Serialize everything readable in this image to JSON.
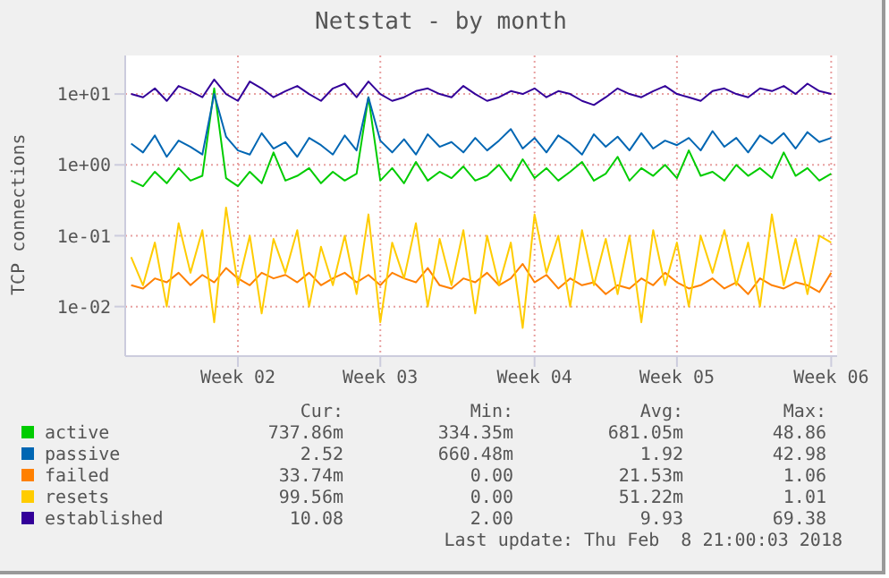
{
  "chart_data": {
    "type": "line",
    "title": "Netstat - by month",
    "ylabel": "TCP connections",
    "log": "y",
    "grid": true,
    "legend": "bottom",
    "marker": "none",
    "line_style": "solid",
    "ylim": [
      0.002,
      35
    ],
    "yticks": [
      {
        "value": 0.01,
        "label": "1e-02"
      },
      {
        "value": 0.1,
        "label": "1e-01"
      },
      {
        "value": 1,
        "label": "1e+00"
      },
      {
        "value": 10,
        "label": "1e+01"
      }
    ],
    "categories": [
      null,
      null,
      null,
      null,
      null,
      null,
      null,
      null,
      null,
      "Week 02",
      null,
      null,
      null,
      null,
      null,
      null,
      null,
      null,
      null,
      null,
      null,
      "Week 03",
      null,
      null,
      null,
      null,
      null,
      null,
      null,
      null,
      null,
      null,
      null,
      null,
      "Week 04",
      null,
      null,
      null,
      null,
      null,
      null,
      null,
      null,
      null,
      null,
      null,
      "Week 05",
      null,
      null,
      null,
      null,
      null,
      null,
      null,
      null,
      null,
      null,
      null,
      null,
      "Week 06"
    ],
    "series": [
      {
        "name": "active",
        "color": "#00cc00",
        "values": [
          0.6,
          0.5,
          0.8,
          0.55,
          0.9,
          0.6,
          0.7,
          12,
          0.65,
          0.5,
          0.8,
          0.55,
          1.5,
          0.6,
          0.7,
          0.9,
          0.55,
          0.8,
          0.6,
          0.75,
          9,
          0.6,
          0.9,
          0.55,
          1.1,
          0.6,
          0.8,
          0.65,
          0.95,
          0.6,
          0.7,
          1.0,
          0.6,
          1.2,
          0.65,
          0.9,
          0.6,
          0.8,
          1.1,
          0.6,
          0.75,
          1.3,
          0.6,
          0.9,
          0.7,
          1.0,
          0.65,
          1.6,
          0.7,
          0.8,
          0.6,
          1.0,
          0.7,
          0.9,
          0.65,
          1.5,
          0.7,
          0.9,
          0.6,
          0.75
        ]
      },
      {
        "name": "passive",
        "color": "#0066b3",
        "values": [
          2,
          1.5,
          2.6,
          1.3,
          2.2,
          1.8,
          1.4,
          10,
          2.5,
          1.6,
          1.4,
          2.8,
          1.7,
          2.1,
          1.3,
          2.4,
          1.9,
          1.4,
          2.6,
          1.6,
          9,
          2.2,
          1.5,
          2.3,
          1.4,
          2.7,
          1.8,
          2.1,
          1.5,
          2.4,
          1.6,
          2.2,
          3.2,
          1.7,
          2.4,
          1.5,
          2.6,
          2.0,
          1.4,
          2.7,
          1.8,
          2.5,
          1.6,
          2.8,
          1.7,
          2.2,
          1.9,
          2.4,
          1.6,
          3.0,
          1.8,
          2.4,
          1.5,
          2.6,
          2.0,
          2.8,
          1.7,
          2.9,
          2.1,
          2.4
        ]
      },
      {
        "name": "failed",
        "color": "#ff8000",
        "values": [
          0.02,
          0.018,
          0.025,
          0.022,
          0.03,
          0.02,
          0.028,
          0.022,
          0.035,
          0.025,
          0.02,
          0.03,
          0.025,
          0.028,
          0.022,
          0.03,
          0.02,
          0.025,
          0.03,
          0.022,
          0.028,
          0.02,
          0.03,
          0.025,
          0.022,
          0.035,
          0.02,
          0.018,
          0.025,
          0.022,
          0.03,
          0.02,
          0.025,
          0.04,
          0.022,
          0.028,
          0.018,
          0.025,
          0.02,
          0.022,
          0.015,
          0.02,
          0.018,
          0.025,
          0.02,
          0.03,
          0.022,
          0.018,
          0.02,
          0.025,
          0.018,
          0.022,
          0.015,
          0.025,
          0.02,
          0.018,
          0.022,
          0.02,
          0.016,
          0.03
        ]
      },
      {
        "name": "resets",
        "color": "#ffcc00",
        "values": [
          0.05,
          0.02,
          0.08,
          0.01,
          0.15,
          0.03,
          0.12,
          0.006,
          0.25,
          0.02,
          0.1,
          0.008,
          0.09,
          0.03,
          0.12,
          0.01,
          0.07,
          0.02,
          0.1,
          0.015,
          0.2,
          0.006,
          0.08,
          0.025,
          0.15,
          0.01,
          0.09,
          0.02,
          0.12,
          0.008,
          0.1,
          0.02,
          0.08,
          0.005,
          0.2,
          0.03,
          0.1,
          0.01,
          0.12,
          0.02,
          0.09,
          0.015,
          0.1,
          0.006,
          0.12,
          0.02,
          0.08,
          0.01,
          0.1,
          0.03,
          0.12,
          0.02,
          0.08,
          0.01,
          0.2,
          0.02,
          0.09,
          0.015,
          0.1,
          0.08
        ]
      },
      {
        "name": "established",
        "color": "#330099",
        "values": [
          10,
          9,
          12,
          8,
          13,
          11,
          9,
          16,
          10,
          8,
          15,
          12,
          9,
          11,
          13,
          10,
          8,
          12,
          14,
          9,
          15,
          10,
          8,
          9,
          11,
          12,
          10,
          9,
          13,
          10,
          8,
          9,
          11,
          10,
          12,
          9,
          11,
          10,
          8,
          7,
          9,
          12,
          10,
          9,
          11,
          13,
          10,
          9,
          8,
          11,
          12,
          10,
          9,
          12,
          11,
          13,
          10,
          14,
          11,
          10
        ]
      }
    ],
    "annotations": [
      "Cur:",
      "Min:",
      "Avg:",
      "Max:",
      "737.86m",
      "334.35m",
      "681.05m",
      "48.86",
      "2.52",
      "660.48m",
      "1.92",
      "42.98",
      "33.74m",
      "0.00",
      "21.53m",
      "1.06",
      "99.56m",
      "0.00",
      "51.22m",
      "1.01",
      "10.08",
      "2.00",
      "9.93",
      "69.38",
      "Last update: Thu Feb  8 21:00:03 2018"
    ]
  }
}
